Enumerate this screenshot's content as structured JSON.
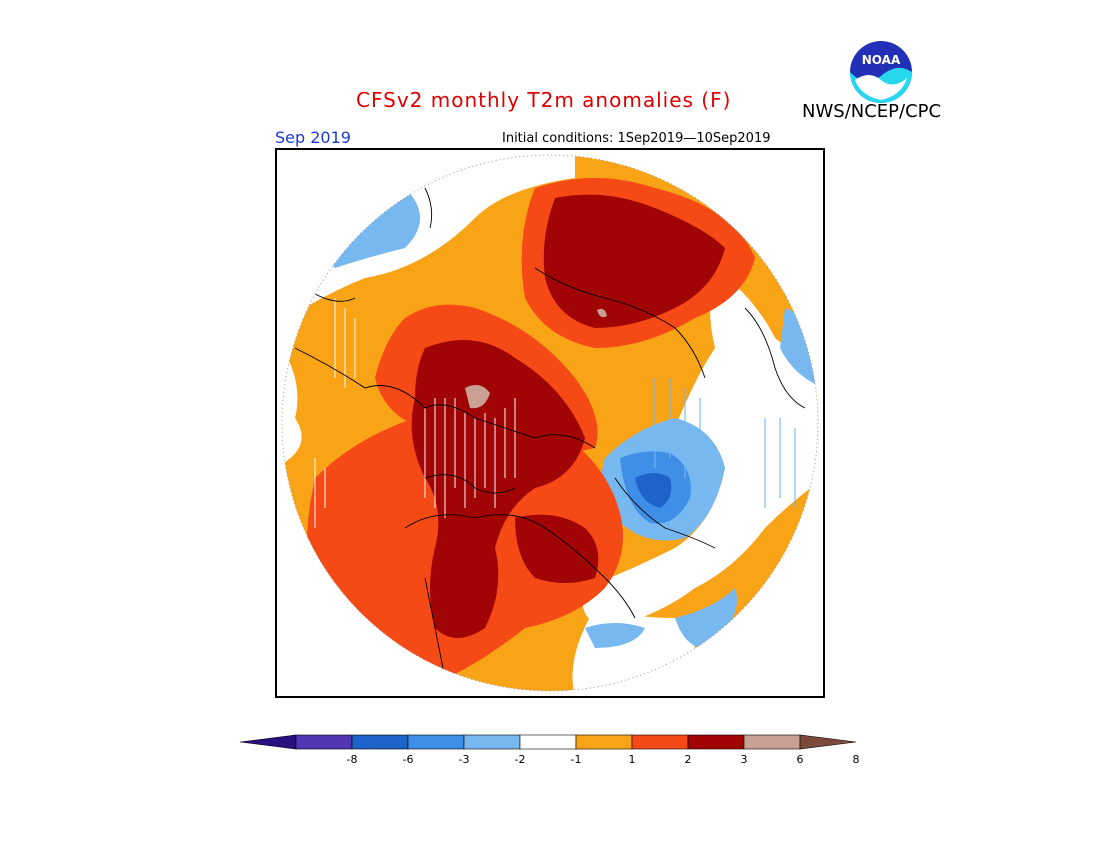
{
  "header": {
    "title": "CFSv2 monthly T2m anomalies (F)",
    "agency": "NWS/NCEP/CPC",
    "logo_text": "NOAA",
    "period": "Sep 2019",
    "initial_conditions": "Initial conditions: 1Sep2019—10Sep2019"
  },
  "legend": {
    "bins": [
      {
        "label": "-8",
        "color": "#5236b4"
      },
      {
        "label": "-6",
        "color": "#1d63c9"
      },
      {
        "label": "-3",
        "color": "#3f8ee8"
      },
      {
        "label": "-2",
        "color": "#77b8f1"
      },
      {
        "label": "-1",
        "color": "#ffffff"
      },
      {
        "label": "1",
        "color": "#f9a316"
      },
      {
        "label": "2",
        "color": "#f64a16"
      },
      {
        "label": "3",
        "color": "#a00404"
      },
      {
        "label": "6",
        "color": "#c9a093"
      },
      {
        "label": "8",
        "color": null
      }
    ],
    "below_color": "#2a0f80",
    "above_color": "#7b4a3a"
  },
  "colors": {
    "title": "#e00000",
    "period": "#1a3ad6",
    "coastline": "#000000"
  }
}
